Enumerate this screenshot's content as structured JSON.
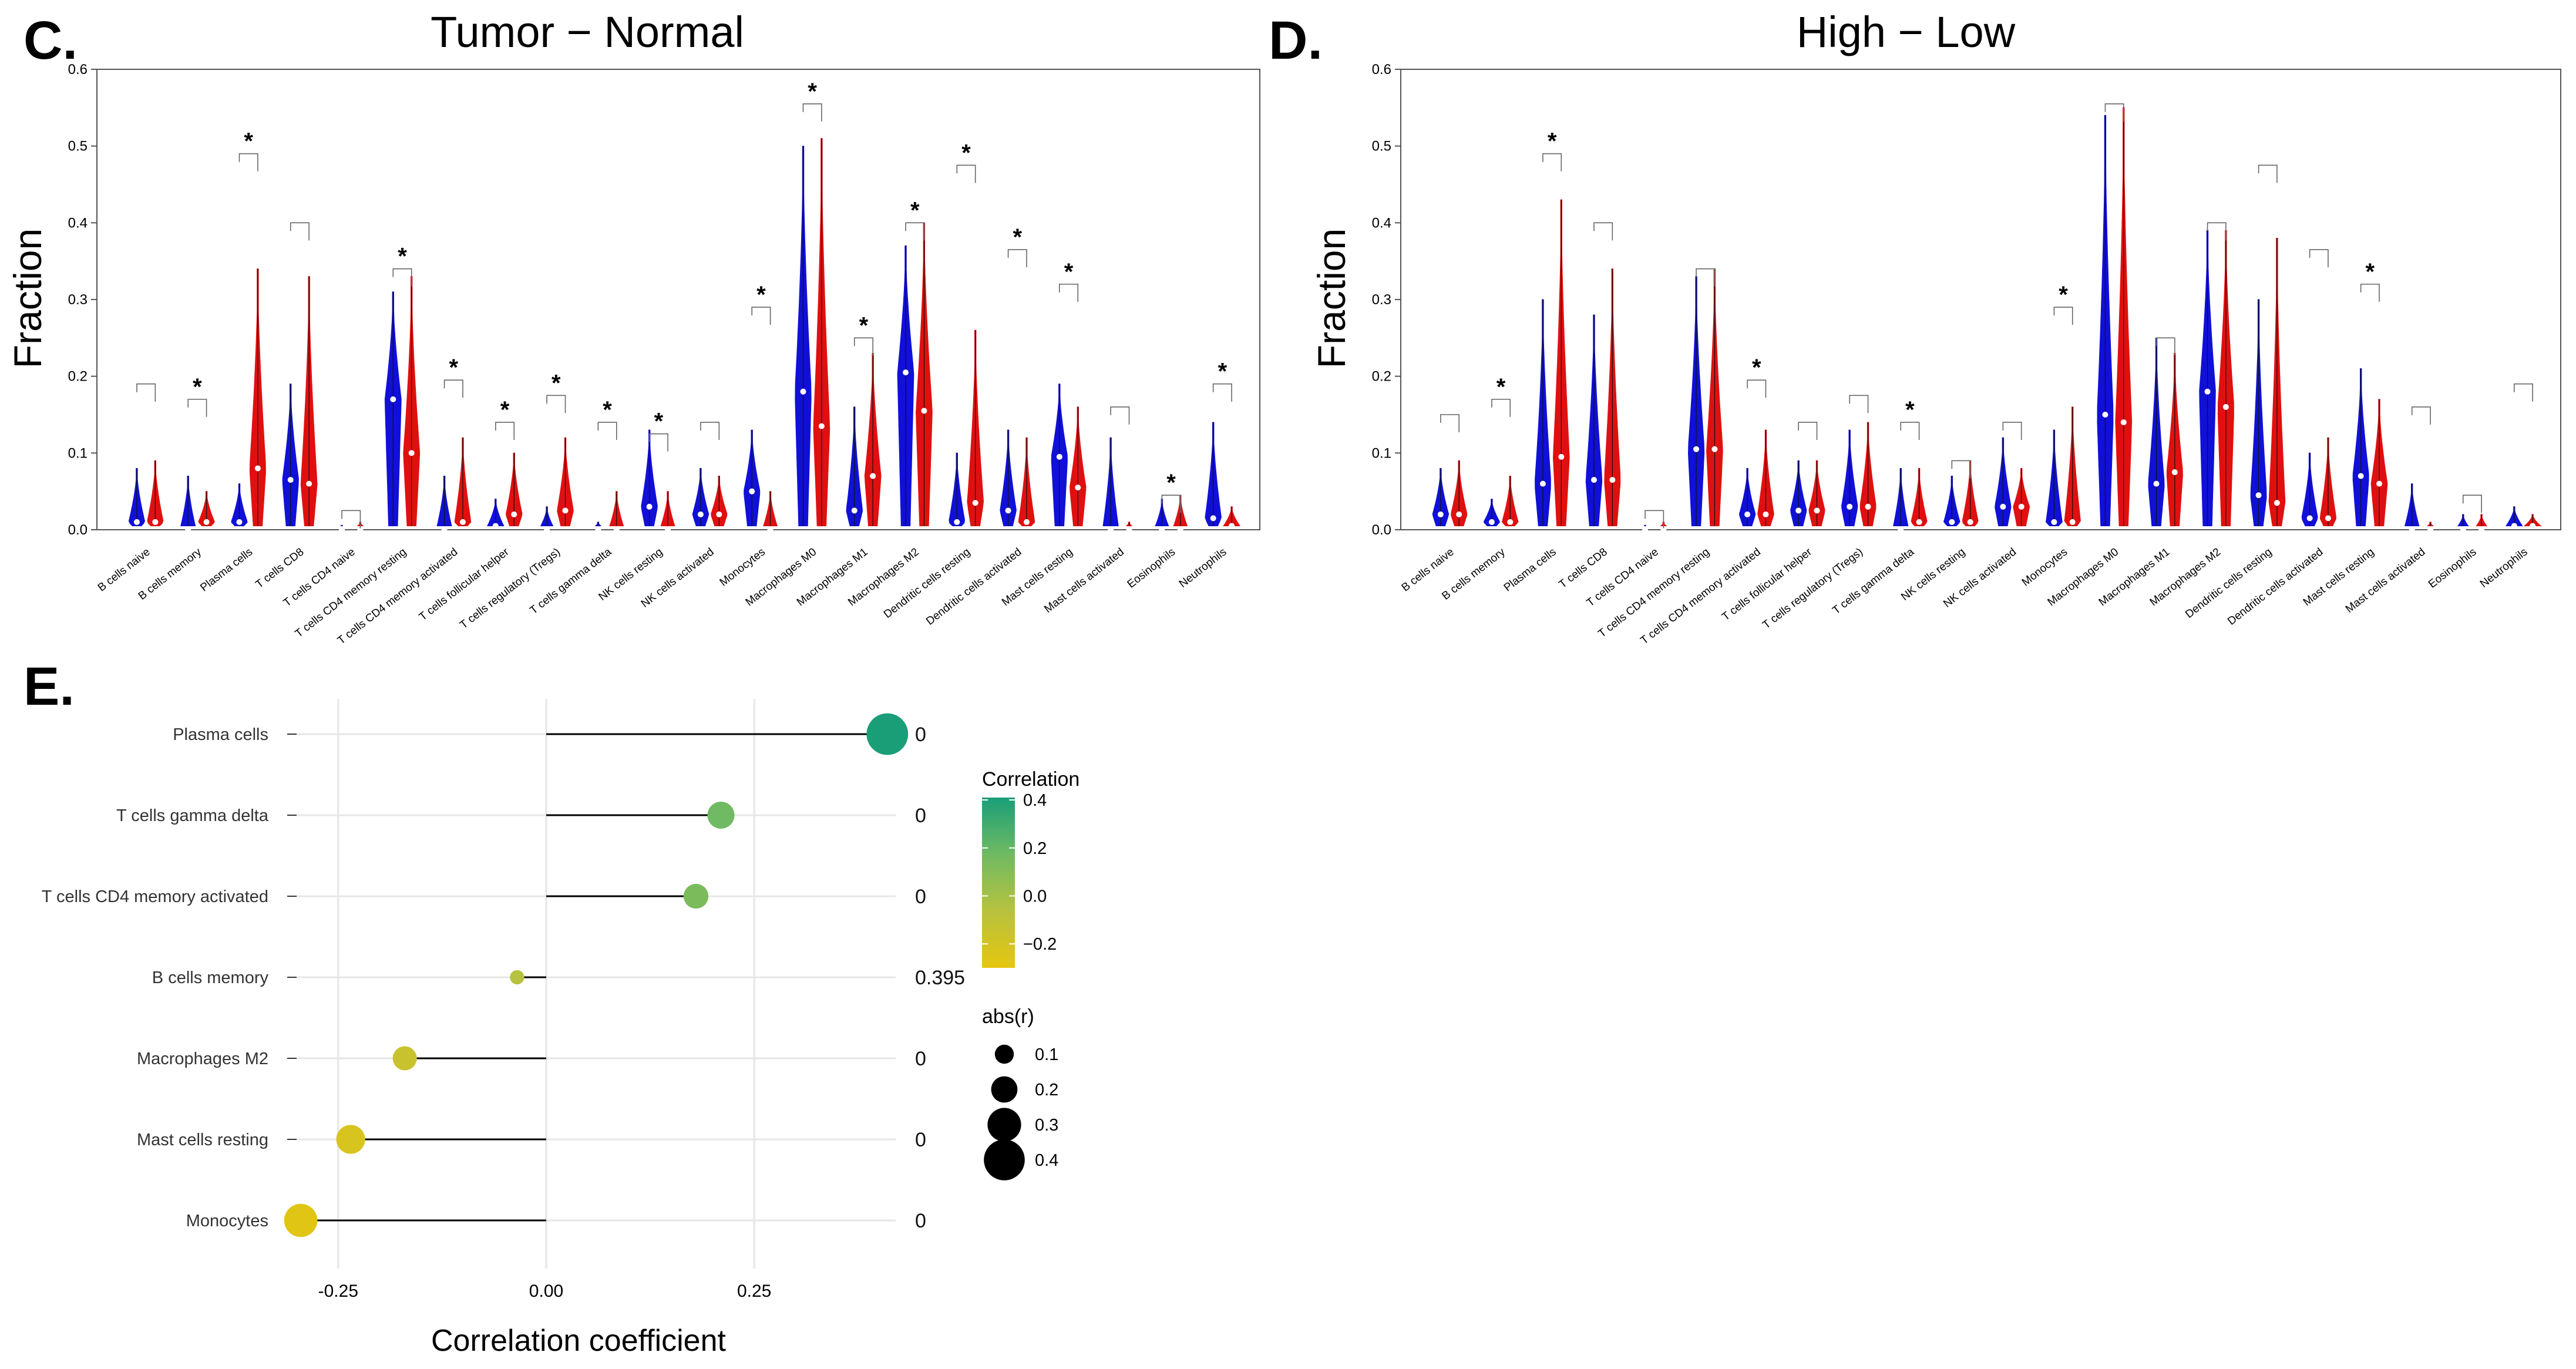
{
  "panels": {
    "c_label": "C.",
    "d_label": "D.",
    "e_label": "E."
  },
  "colors": {
    "group1": "#1010d8",
    "group2": "#e01010",
    "axis": "#555555",
    "grid": "#e6e6e6",
    "lollipop_line": "#000000"
  },
  "chart_data": [
    {
      "id": "C",
      "type": "violin",
      "title": "Tumor − Normal",
      "ylabel": "Fraction",
      "ylim": [
        0,
        0.6
      ],
      "yticks": [
        "0.0",
        "0.1",
        "0.2",
        "0.3",
        "0.4",
        "0.5",
        "0.6"
      ],
      "series": [
        {
          "name": "Normal",
          "color": "#1010d8"
        },
        {
          "name": "Tumor",
          "color": "#e01010"
        }
      ],
      "categories": [
        {
          "name": "B cells naive",
          "g1": {
            "max": 0.08,
            "median": 0.01
          },
          "g2": {
            "max": 0.09,
            "median": 0.01
          },
          "bracket": 0.19,
          "sig": ""
        },
        {
          "name": "B cells memory",
          "g1": {
            "max": 0.07,
            "median": 0.0
          },
          "g2": {
            "max": 0.05,
            "median": 0.01
          },
          "bracket": 0.17,
          "sig": "*"
        },
        {
          "name": "Plasma cells",
          "g1": {
            "max": 0.06,
            "median": 0.01
          },
          "g2": {
            "max": 0.34,
            "median": 0.08
          },
          "bracket": 0.49,
          "sig": "*"
        },
        {
          "name": "T cells CD8",
          "g1": {
            "max": 0.19,
            "median": 0.065
          },
          "g2": {
            "max": 0.33,
            "median": 0.06
          },
          "bracket": 0.4,
          "sig": ""
        },
        {
          "name": "T cells CD4 naive",
          "g1": {
            "max": 0.005,
            "median": 0.0
          },
          "g2": {
            "max": 0.01,
            "median": 0.0
          },
          "bracket": 0.025,
          "sig": ""
        },
        {
          "name": "T cells CD4 memory resting",
          "g1": {
            "max": 0.31,
            "median": 0.17
          },
          "g2": {
            "max": 0.33,
            "median": 0.1
          },
          "bracket": 0.34,
          "sig": "*"
        },
        {
          "name": "T cells CD4 memory activated",
          "g1": {
            "max": 0.07,
            "median": 0.0
          },
          "g2": {
            "max": 0.12,
            "median": 0.01
          },
          "bracket": 0.195,
          "sig": "*"
        },
        {
          "name": "T cells follicular helper",
          "g1": {
            "max": 0.04,
            "median": 0.005
          },
          "g2": {
            "max": 0.1,
            "median": 0.02
          },
          "bracket": 0.14,
          "sig": "*"
        },
        {
          "name": "T cells regulatory (Tregs)",
          "g1": {
            "max": 0.03,
            "median": 0.0
          },
          "g2": {
            "max": 0.12,
            "median": 0.025
          },
          "bracket": 0.175,
          "sig": "*"
        },
        {
          "name": "T cells gamma delta",
          "g1": {
            "max": 0.01,
            "median": 0.0
          },
          "g2": {
            "max": 0.05,
            "median": 0.0
          },
          "bracket": 0.14,
          "sig": "*"
        },
        {
          "name": "NK cells resting",
          "g1": {
            "max": 0.13,
            "median": 0.03
          },
          "g2": {
            "max": 0.05,
            "median": 0.0
          },
          "bracket": 0.125,
          "sig": "*"
        },
        {
          "name": "NK cells activated",
          "g1": {
            "max": 0.08,
            "median": 0.02
          },
          "g2": {
            "max": 0.07,
            "median": 0.02
          },
          "bracket": 0.14,
          "sig": ""
        },
        {
          "name": "Monocytes",
          "g1": {
            "max": 0.13,
            "median": 0.05
          },
          "g2": {
            "max": 0.05,
            "median": 0.0
          },
          "bracket": 0.29,
          "sig": "*"
        },
        {
          "name": "Macrophages M0",
          "g1": {
            "max": 0.5,
            "median": 0.18
          },
          "g2": {
            "max": 0.51,
            "median": 0.135
          },
          "bracket": 0.555,
          "sig": "*"
        },
        {
          "name": "Macrophages M1",
          "g1": {
            "max": 0.16,
            "median": 0.025
          },
          "g2": {
            "max": 0.23,
            "median": 0.07
          },
          "bracket": 0.25,
          "sig": "*"
        },
        {
          "name": "Macrophages M2",
          "g1": {
            "max": 0.37,
            "median": 0.205
          },
          "g2": {
            "max": 0.4,
            "median": 0.155
          },
          "bracket": 0.4,
          "sig": "*"
        },
        {
          "name": "Dendritic cells resting",
          "g1": {
            "max": 0.1,
            "median": 0.01
          },
          "g2": {
            "max": 0.26,
            "median": 0.035
          },
          "bracket": 0.475,
          "sig": "*"
        },
        {
          "name": "Dendritic cells activated",
          "g1": {
            "max": 0.13,
            "median": 0.025
          },
          "g2": {
            "max": 0.12,
            "median": 0.01
          },
          "bracket": 0.365,
          "sig": "*"
        },
        {
          "name": "Mast cells resting",
          "g1": {
            "max": 0.19,
            "median": 0.095
          },
          "g2": {
            "max": 0.16,
            "median": 0.055
          },
          "bracket": 0.32,
          "sig": "*"
        },
        {
          "name": "Mast cells activated",
          "g1": {
            "max": 0.12,
            "median": 0.0
          },
          "g2": {
            "max": 0.01,
            "median": 0.0
          },
          "bracket": 0.16,
          "sig": ""
        },
        {
          "name": "Eosinophils",
          "g1": {
            "max": 0.04,
            "median": 0.0
          },
          "g2": {
            "max": 0.045,
            "median": 0.0
          },
          "bracket": 0.045,
          "sig": "*"
        },
        {
          "name": "Neutrophils",
          "g1": {
            "max": 0.14,
            "median": 0.015
          },
          "g2": {
            "max": 0.03,
            "median": 0.005
          },
          "bracket": 0.19,
          "sig": "*"
        }
      ]
    },
    {
      "id": "D",
      "type": "violin",
      "title": "High − Low",
      "ylabel": "Fraction",
      "ylim": [
        0,
        0.6
      ],
      "yticks": [
        "0.0",
        "0.1",
        "0.2",
        "0.3",
        "0.4",
        "0.5",
        "0.6"
      ],
      "series": [
        {
          "name": "Low",
          "color": "#1010d8"
        },
        {
          "name": "High",
          "color": "#e01010"
        }
      ],
      "categories": [
        {
          "name": "B cells naive",
          "g1": {
            "max": 0.08,
            "median": 0.02
          },
          "g2": {
            "max": 0.09,
            "median": 0.02
          },
          "bracket": 0.15,
          "sig": ""
        },
        {
          "name": "B cells memory",
          "g1": {
            "max": 0.04,
            "median": 0.01
          },
          "g2": {
            "max": 0.07,
            "median": 0.01
          },
          "bracket": 0.17,
          "sig": "*"
        },
        {
          "name": "Plasma cells",
          "g1": {
            "max": 0.3,
            "median": 0.06
          },
          "g2": {
            "max": 0.43,
            "median": 0.095
          },
          "bracket": 0.49,
          "sig": "*"
        },
        {
          "name": "T cells CD8",
          "g1": {
            "max": 0.28,
            "median": 0.065
          },
          "g2": {
            "max": 0.34,
            "median": 0.065
          },
          "bracket": 0.4,
          "sig": ""
        },
        {
          "name": "T cells CD4 naive",
          "g1": {
            "max": 0.005,
            "median": 0.0
          },
          "g2": {
            "max": 0.01,
            "median": 0.0
          },
          "bracket": 0.025,
          "sig": ""
        },
        {
          "name": "T cells CD4 memory resting",
          "g1": {
            "max": 0.33,
            "median": 0.105
          },
          "g2": {
            "max": 0.34,
            "median": 0.105
          },
          "bracket": 0.34,
          "sig": ""
        },
        {
          "name": "T cells CD4 memory activated",
          "g1": {
            "max": 0.08,
            "median": 0.02
          },
          "g2": {
            "max": 0.13,
            "median": 0.02
          },
          "bracket": 0.195,
          "sig": "*"
        },
        {
          "name": "T cells follicular helper",
          "g1": {
            "max": 0.09,
            "median": 0.025
          },
          "g2": {
            "max": 0.09,
            "median": 0.025
          },
          "bracket": 0.14,
          "sig": ""
        },
        {
          "name": "T cells regulatory (Tregs)",
          "g1": {
            "max": 0.13,
            "median": 0.03
          },
          "g2": {
            "max": 0.14,
            "median": 0.03
          },
          "bracket": 0.175,
          "sig": ""
        },
        {
          "name": "T cells gamma delta",
          "g1": {
            "max": 0.08,
            "median": 0.0
          },
          "g2": {
            "max": 0.08,
            "median": 0.01
          },
          "bracket": 0.14,
          "sig": "*"
        },
        {
          "name": "NK cells resting",
          "g1": {
            "max": 0.07,
            "median": 0.01
          },
          "g2": {
            "max": 0.09,
            "median": 0.01
          },
          "bracket": 0.09,
          "sig": ""
        },
        {
          "name": "NK cells activated",
          "g1": {
            "max": 0.12,
            "median": 0.03
          },
          "g2": {
            "max": 0.08,
            "median": 0.03
          },
          "bracket": 0.14,
          "sig": ""
        },
        {
          "name": "Monocytes",
          "g1": {
            "max": 0.13,
            "median": 0.01
          },
          "g2": {
            "max": 0.16,
            "median": 0.01
          },
          "bracket": 0.29,
          "sig": "*"
        },
        {
          "name": "Macrophages M0",
          "g1": {
            "max": 0.54,
            "median": 0.15
          },
          "g2": {
            "max": 0.55,
            "median": 0.14
          },
          "bracket": 0.555,
          "sig": ""
        },
        {
          "name": "Macrophages M1",
          "g1": {
            "max": 0.25,
            "median": 0.06
          },
          "g2": {
            "max": 0.23,
            "median": 0.075
          },
          "bracket": 0.25,
          "sig": ""
        },
        {
          "name": "Macrophages M2",
          "g1": {
            "max": 0.39,
            "median": 0.18
          },
          "g2": {
            "max": 0.39,
            "median": 0.16
          },
          "bracket": 0.4,
          "sig": ""
        },
        {
          "name": "Dendritic cells resting",
          "g1": {
            "max": 0.3,
            "median": 0.045
          },
          "g2": {
            "max": 0.38,
            "median": 0.035
          },
          "bracket": 0.475,
          "sig": ""
        },
        {
          "name": "Dendritic cells activated",
          "g1": {
            "max": 0.1,
            "median": 0.015
          },
          "g2": {
            "max": 0.12,
            "median": 0.015
          },
          "bracket": 0.365,
          "sig": ""
        },
        {
          "name": "Mast cells resting",
          "g1": {
            "max": 0.21,
            "median": 0.07
          },
          "g2": {
            "max": 0.17,
            "median": 0.06
          },
          "bracket": 0.32,
          "sig": "*"
        },
        {
          "name": "Mast cells activated",
          "g1": {
            "max": 0.06,
            "median": 0.0
          },
          "g2": {
            "max": 0.01,
            "median": 0.0
          },
          "bracket": 0.16,
          "sig": ""
        },
        {
          "name": "Eosinophils",
          "g1": {
            "max": 0.02,
            "median": 0.0
          },
          "g2": {
            "max": 0.02,
            "median": 0.0
          },
          "bracket": 0.045,
          "sig": ""
        },
        {
          "name": "Neutrophils",
          "g1": {
            "max": 0.03,
            "median": 0.005
          },
          "g2": {
            "max": 0.02,
            "median": 0.005
          },
          "bracket": 0.19,
          "sig": ""
        }
      ]
    },
    {
      "id": "E",
      "type": "lollipop",
      "xlabel": "Correlation coefficient",
      "xlim": [
        -0.3,
        0.42
      ],
      "xticks": [
        {
          "value": -0.25,
          "label": "-0.25"
        },
        {
          "value": 0.0,
          "label": "0.00"
        },
        {
          "value": 0.25,
          "label": "0.25"
        }
      ],
      "rows": [
        {
          "name": "Plasma cells",
          "r": 0.41,
          "p": "0",
          "color": "#1a9e78"
        },
        {
          "name": "T cells gamma delta",
          "r": 0.21,
          "p": "0",
          "color": "#6fba62"
        },
        {
          "name": "T cells CD4 memory activated",
          "r": 0.18,
          "p": "0",
          "color": "#7cbb5c"
        },
        {
          "name": "B cells memory",
          "r": -0.035,
          "p": "0.395",
          "color": "#b7c23e"
        },
        {
          "name": "Macrophages M2",
          "r": -0.17,
          "p": "0",
          "color": "#c9c22f"
        },
        {
          "name": "Mast cells resting",
          "r": -0.235,
          "p": "0",
          "color": "#d8c41f"
        },
        {
          "name": "Monocytes",
          "r": -0.295,
          "p": "0",
          "color": "#e1c514"
        }
      ],
      "legend_color": {
        "title": "Correlation",
        "ticks": [
          {
            "value": 0.4,
            "label": "0.4"
          },
          {
            "value": 0.2,
            "label": "0.2"
          },
          {
            "value": 0.0,
            "label": "0.0"
          },
          {
            "value": -0.2,
            "label": "−0.2"
          }
        ],
        "range": [
          -0.3,
          0.41
        ],
        "gradient": [
          "#1a9e78",
          "#6fba62",
          "#b7c23e",
          "#e6c60f"
        ]
      },
      "legend_size": {
        "title": "abs(r)",
        "entries": [
          {
            "value": 0.1,
            "label": "0.1"
          },
          {
            "value": 0.2,
            "label": "0.2"
          },
          {
            "value": 0.3,
            "label": "0.3"
          },
          {
            "value": 0.4,
            "label": "0.4"
          }
        ]
      }
    }
  ]
}
